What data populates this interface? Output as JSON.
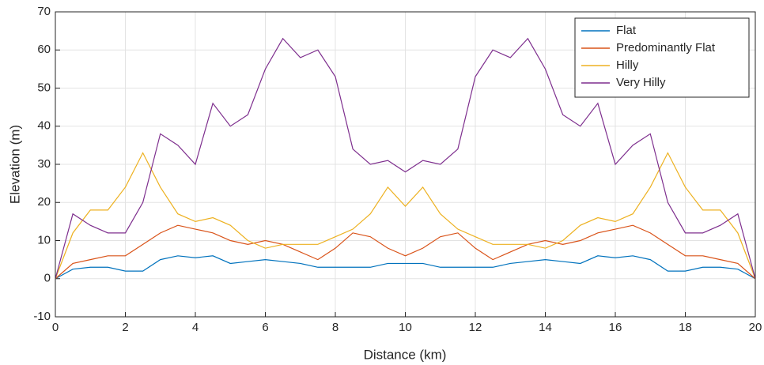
{
  "chart_data": {
    "type": "line",
    "x_label": "Distance (km)",
    "y_label": "Elevation (m)",
    "x": [
      0,
      0.5,
      1,
      1.5,
      2,
      2.5,
      3,
      3.5,
      4,
      4.5,
      5,
      5.5,
      6,
      6.5,
      7,
      7.5,
      8,
      8.5,
      9,
      9.5,
      10,
      10.5,
      11,
      11.5,
      12,
      12.5,
      13,
      13.5,
      14,
      14.5,
      15,
      15.5,
      16,
      16.5,
      17,
      17.5,
      18,
      18.5,
      19,
      19.5,
      20
    ],
    "series": [
      {
        "name": "Flat",
        "color": "#0072bd",
        "values": [
          0,
          2.5,
          3,
          3,
          2,
          2,
          5,
          6,
          5.5,
          6,
          4,
          4.5,
          5,
          4.5,
          4,
          3,
          3,
          3,
          3,
          4,
          4,
          4,
          3,
          3,
          3,
          3,
          4,
          4.5,
          5,
          4.5,
          4,
          6,
          5.5,
          6,
          5,
          2,
          2,
          3,
          3,
          2.5,
          0
        ]
      },
      {
        "name": "Predominantly Flat",
        "color": "#d95319",
        "values": [
          0,
          4,
          5,
          6,
          6,
          9,
          12,
          14,
          13,
          12,
          10,
          9,
          10,
          9,
          7,
          5,
          8,
          12,
          11,
          8,
          6,
          8,
          11,
          12,
          8,
          5,
          7,
          9,
          10,
          9,
          10,
          12,
          13,
          14,
          12,
          9,
          6,
          6,
          5,
          4,
          0
        ]
      },
      {
        "name": "Hilly",
        "color": "#edb120",
        "values": [
          0,
          12,
          18,
          18,
          24,
          33,
          24,
          17,
          15,
          16,
          14,
          10,
          8,
          9,
          9,
          9,
          11,
          13,
          17,
          24,
          19,
          24,
          17,
          13,
          11,
          9,
          9,
          9,
          8,
          10,
          14,
          16,
          15,
          17,
          24,
          33,
          24,
          18,
          18,
          12,
          0
        ]
      },
      {
        "name": "Very Hilly",
        "color": "#7e2f8e",
        "values": [
          0,
          17,
          14,
          12,
          12,
          20,
          38,
          35,
          30,
          46,
          40,
          43,
          55,
          63,
          58,
          60,
          53,
          34,
          30,
          31,
          28,
          31,
          30,
          34,
          53,
          60,
          58,
          63,
          55,
          43,
          40,
          46,
          30,
          35,
          38,
          20,
          12,
          12,
          14,
          17,
          0
        ]
      }
    ],
    "xlim": [
      0,
      20
    ],
    "xticks": [
      0,
      2,
      4,
      6,
      8,
      10,
      12,
      14,
      16,
      18,
      20
    ],
    "ylim": [
      -10,
      70
    ],
    "yticks": [
      -10,
      0,
      10,
      20,
      30,
      40,
      50,
      60,
      70
    ],
    "grid": true,
    "legend": "top-right"
  }
}
